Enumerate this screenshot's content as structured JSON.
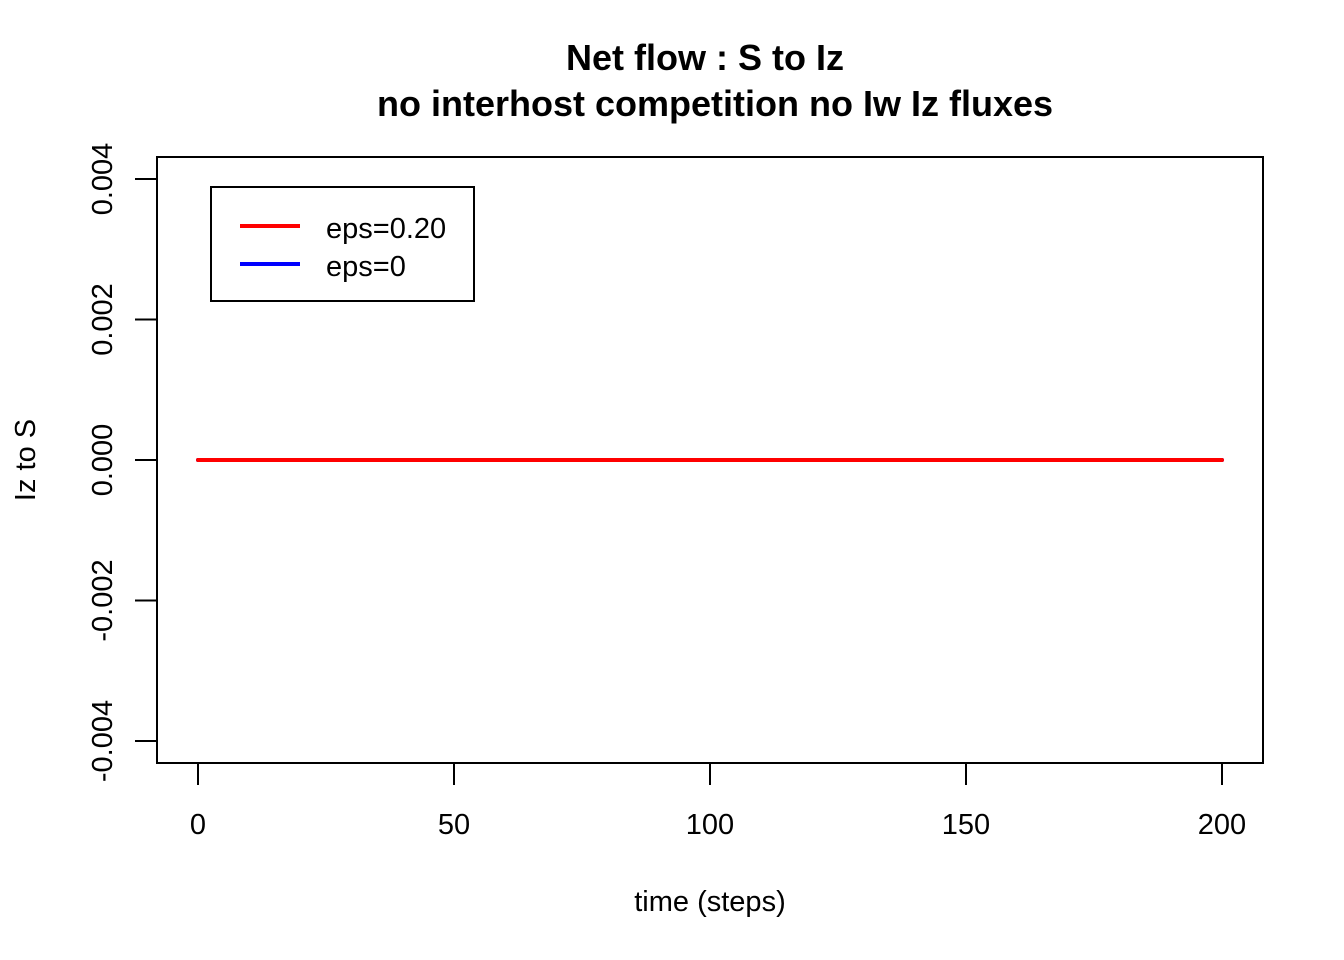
{
  "chart_data": {
    "type": "line",
    "title": "Net flow : S to Iz",
    "subtitle": "no interhost competition no Iw Iz fluxes",
    "xlabel": "time (steps)",
    "ylabel": "Iz to S",
    "xlim": [
      0,
      200
    ],
    "ylim": [
      -0.004,
      0.004
    ],
    "x_ticks": [
      0,
      50,
      100,
      150,
      200
    ],
    "x_tick_labels": [
      "0",
      "50",
      "100",
      "150",
      "200"
    ],
    "y_ticks": [
      -0.004,
      -0.002,
      0,
      0.002,
      0.004
    ],
    "y_tick_labels": [
      "-0.004",
      "-0.002",
      "0.000",
      "0.002",
      "0.004"
    ],
    "grid": false,
    "legend_position": "top-left",
    "series": [
      {
        "name": "eps=0.20",
        "color": "#ff0000",
        "x": [
          0,
          200
        ],
        "y": [
          0,
          0
        ]
      },
      {
        "name": "eps=0",
        "color": "#0000ff",
        "x": [
          0,
          200
        ],
        "y": [
          0,
          0
        ]
      }
    ]
  }
}
